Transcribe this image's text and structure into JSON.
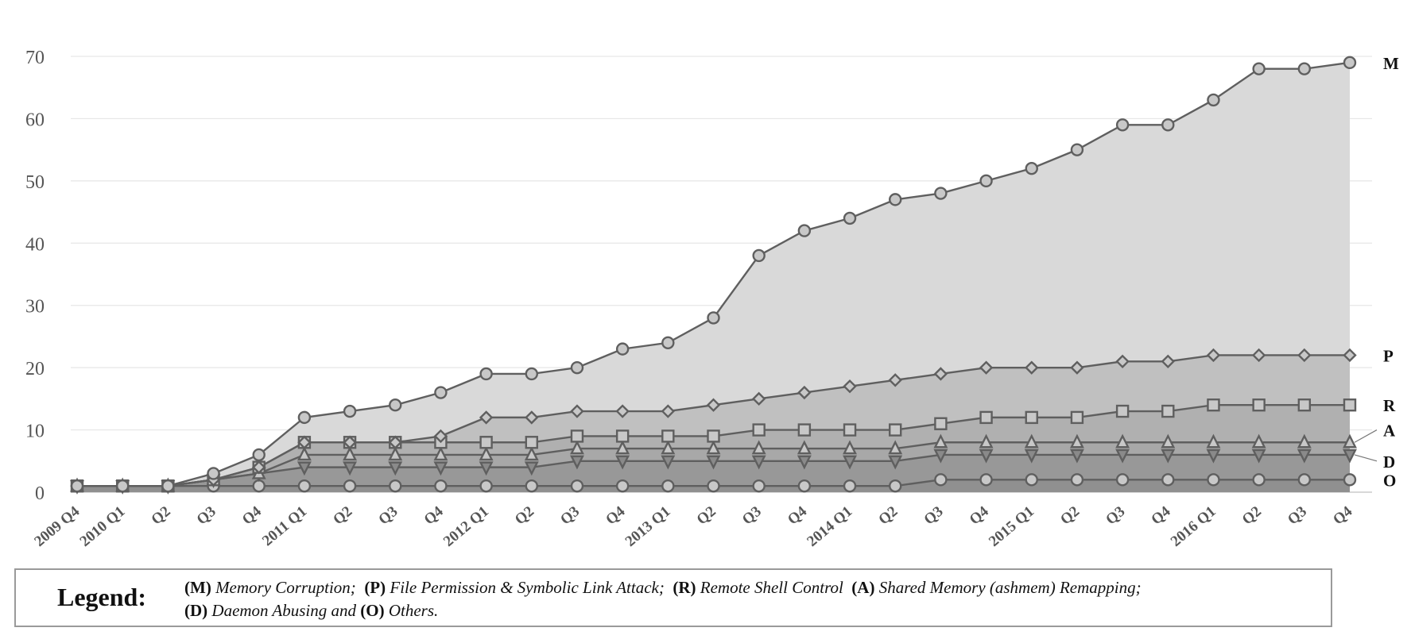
{
  "chart_data": {
    "type": "area",
    "x": [
      "2009 Q4",
      "2010 Q1",
      "Q2",
      "Q3",
      "Q4",
      "2011 Q1",
      "Q2",
      "Q3",
      "Q4",
      "2012 Q1",
      "Q2",
      "Q3",
      "Q4",
      "2013 Q1",
      "Q2",
      "Q3",
      "Q4",
      "2014 Q1",
      "Q2",
      "Q3",
      "Q4",
      "2015 Q1",
      "Q2",
      "Q3",
      "Q4",
      "2016 Q1",
      "Q2",
      "Q3",
      "Q4"
    ],
    "ylim": [
      0,
      70
    ],
    "yticks": [
      0,
      10,
      20,
      30,
      40,
      50,
      60,
      70
    ],
    "grid": "horizontal",
    "stacked_cumulative": true,
    "series": [
      {
        "name": "M",
        "marker": "circle",
        "fill": "#d9d9d9",
        "values": [
          1,
          1,
          1,
          3,
          6,
          12,
          13,
          14,
          16,
          19,
          19,
          20,
          23,
          24,
          28,
          38,
          42,
          44,
          47,
          48,
          50,
          52,
          55,
          59,
          59,
          63,
          68,
          68,
          69
        ]
      },
      {
        "name": "P",
        "marker": "diamond",
        "fill": "#c0c0c0",
        "values": [
          1,
          1,
          1,
          2,
          4,
          8,
          8,
          8,
          9,
          12,
          12,
          13,
          13,
          13,
          14,
          15,
          16,
          17,
          18,
          19,
          20,
          20,
          20,
          21,
          21,
          22,
          22,
          22,
          22
        ]
      },
      {
        "name": "R",
        "marker": "square",
        "fill": "#b0b0b0",
        "values": [
          1,
          1,
          1,
          2,
          4,
          8,
          8,
          8,
          8,
          8,
          8,
          9,
          9,
          9,
          9,
          10,
          10,
          10,
          10,
          11,
          12,
          12,
          12,
          13,
          13,
          14,
          14,
          14,
          14
        ]
      },
      {
        "name": "A",
        "marker": "triangle-up",
        "fill": "#a8a8a8",
        "values": [
          1,
          1,
          1,
          2,
          3,
          6,
          6,
          6,
          6,
          6,
          6,
          7,
          7,
          7,
          7,
          7,
          7,
          7,
          7,
          8,
          8,
          8,
          8,
          8,
          8,
          8,
          8,
          8,
          8
        ]
      },
      {
        "name": "D",
        "marker": "triangle-down",
        "fill": "#989898",
        "values": [
          1,
          1,
          1,
          2,
          3,
          4,
          4,
          4,
          4,
          4,
          4,
          5,
          5,
          5,
          5,
          5,
          5,
          5,
          5,
          6,
          6,
          6,
          6,
          6,
          6,
          6,
          6,
          6,
          6
        ]
      },
      {
        "name": "O",
        "marker": "circle",
        "fill": "#909090",
        "values": [
          1,
          1,
          1,
          1,
          1,
          1,
          1,
          1,
          1,
          1,
          1,
          1,
          1,
          1,
          1,
          1,
          1,
          1,
          1,
          2,
          2,
          2,
          2,
          2,
          2,
          2,
          2,
          2,
          2
        ]
      }
    ]
  },
  "legend": {
    "title": "Legend:",
    "items": [
      {
        "key": "(M)",
        "text": "Memory Corruption;"
      },
      {
        "key": "(P)",
        "text": "File Permission & Symbolic Link Attack;"
      },
      {
        "key": "(R)",
        "text": "Remote Shell Control"
      },
      {
        "key": "(A)",
        "text": "Shared Memory (ashmem) Remapping;"
      },
      {
        "key": "(D)",
        "text": "Daemon Abusing and"
      },
      {
        "key": "(O)",
        "text": "Others."
      }
    ]
  },
  "colors": {
    "line": "#5f5f5f",
    "marker_fill": "#c8c8c8",
    "grid": "#e6e6e6",
    "axis": "#cccccc"
  }
}
